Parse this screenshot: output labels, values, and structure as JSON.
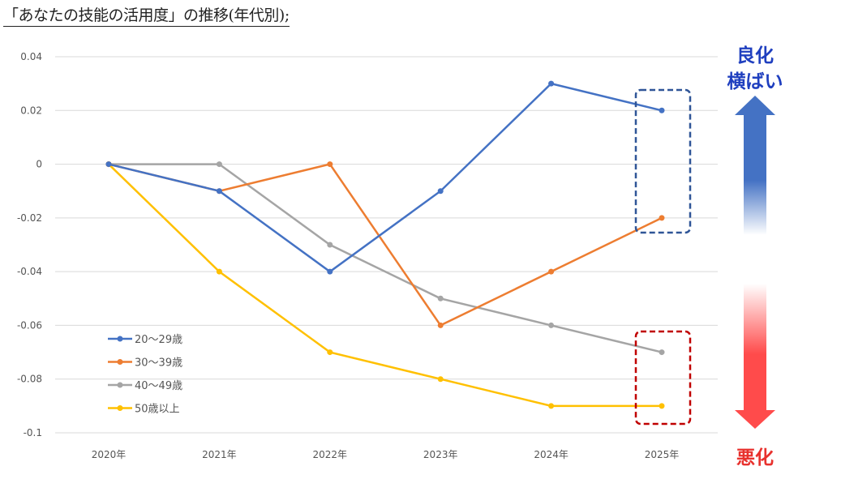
{
  "chart_data": {
    "type": "line",
    "title": "「あなたの技能の活用度」の推移(年代別);",
    "categories": [
      "2020年",
      "2021年",
      "2022年",
      "2023年",
      "2024年",
      "2025年"
    ],
    "ylim": [
      -0.1,
      0.04
    ],
    "yticks": [
      "0.04",
      "0.02",
      "0",
      "-0.02",
      "-0.04",
      "-0.06",
      "-0.08",
      "-0.1"
    ],
    "grid": true,
    "legend_position": "bottom-left",
    "series": [
      {
        "name": "20〜29歳",
        "color": "#4472C4",
        "values": [
          0,
          -0.01,
          -0.04,
          -0.01,
          0.03,
          0.02
        ]
      },
      {
        "name": "30〜39歳",
        "color": "#ED7D31",
        "values": [
          0,
          -0.01,
          0,
          -0.06,
          -0.04,
          -0.02
        ]
      },
      {
        "name": "40〜49歳",
        "color": "#A5A5A5",
        "values": [
          0,
          0,
          -0.03,
          -0.05,
          -0.06,
          -0.07
        ]
      },
      {
        "name": "50歳以上",
        "color": "#FFC000",
        "values": [
          0,
          -0.04,
          -0.07,
          -0.08,
          -0.09,
          -0.09
        ]
      }
    ],
    "annotations": {
      "up_label_1": "良化",
      "up_label_2": "横ばい",
      "down_label": "悪化",
      "up_color": "#1F3FBF",
      "down_color": "#E8322E",
      "highlight_box_blue": "#2F5597",
      "highlight_box_red": "#C00000"
    }
  }
}
